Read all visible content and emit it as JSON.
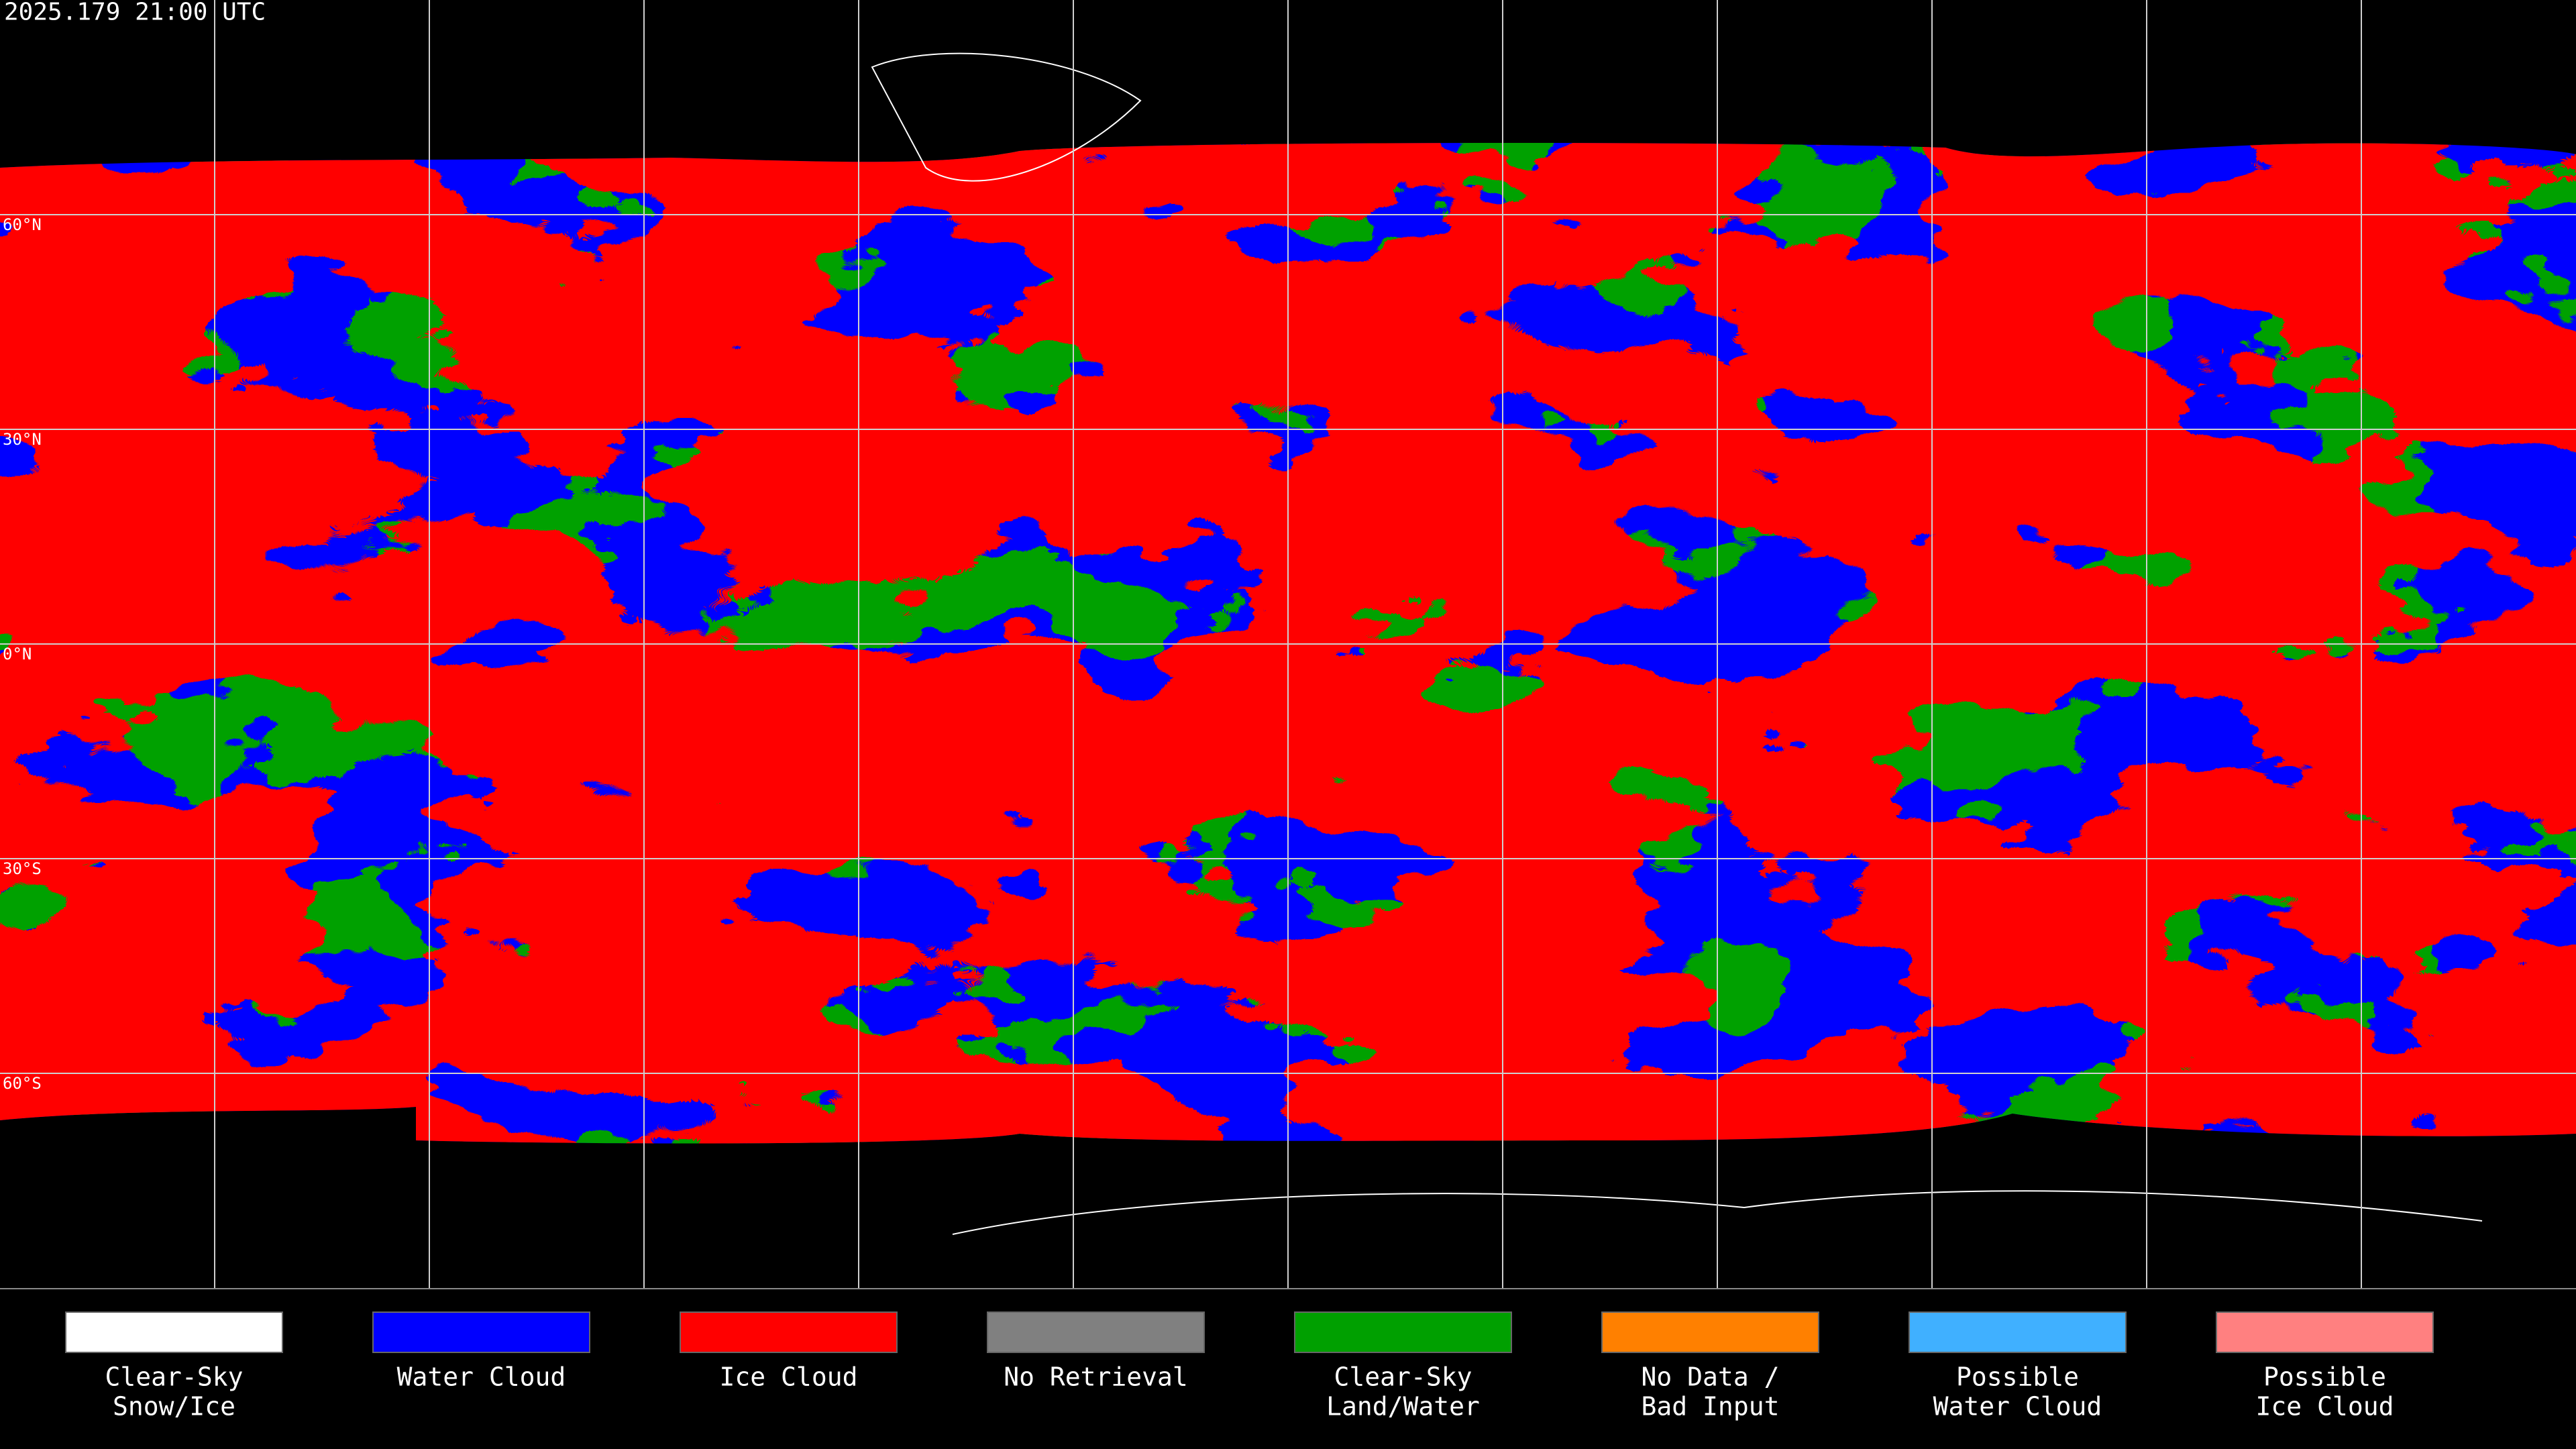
{
  "header": {
    "timestamp": "2025.179 21:00 UTC"
  },
  "latitude_labels": [
    "60°N",
    "30°N",
    "0°N",
    "30°S",
    "60°S"
  ],
  "legend": {
    "items": [
      {
        "label": [
          "Clear-Sky",
          "Snow/Ice"
        ],
        "color": "#ffffff"
      },
      {
        "label": [
          "Water Cloud"
        ],
        "color": "#0000ff"
      },
      {
        "label": [
          "Ice Cloud"
        ],
        "color": "#ff0000"
      },
      {
        "label": [
          "No Retrieval"
        ],
        "color": "#808080"
      },
      {
        "label": [
          "Clear-Sky",
          "Land/Water"
        ],
        "color": "#00a000"
      },
      {
        "label": [
          "No Data /",
          "Bad Input"
        ],
        "color": "#ff8000"
      },
      {
        "label": [
          "Possible",
          "Water Cloud"
        ],
        "color": "#40b0ff"
      },
      {
        "label": [
          "Possible",
          "Ice Cloud"
        ],
        "color": "#ff8080"
      }
    ]
  }
}
